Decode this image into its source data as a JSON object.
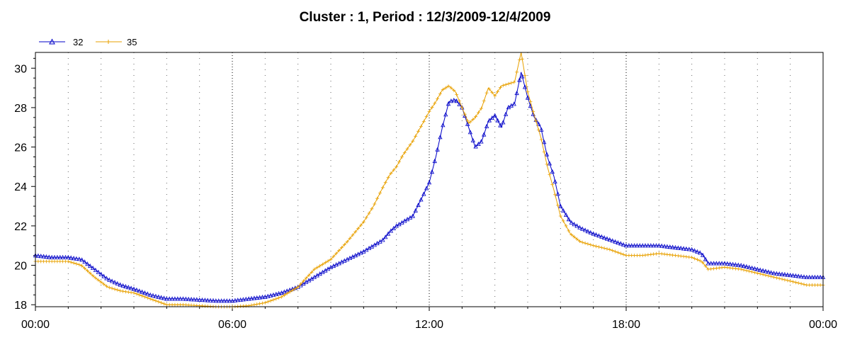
{
  "chart_data": {
    "type": "line",
    "title": "Cluster : 1, Period : 12/3/2009-12/4/2009",
    "xlabel": "",
    "ylabel": "",
    "x_ticks": [
      "00:00",
      "06:00",
      "12:00",
      "18:00",
      "00:00"
    ],
    "x_range_hours": [
      0,
      24
    ],
    "ylim": [
      17.9,
      30.8
    ],
    "y_ticks": [
      18,
      20,
      22,
      24,
      26,
      28,
      30
    ],
    "grid": "vertical dotted",
    "legend_position": "top-left",
    "x_hours": [
      0,
      0.5,
      1,
      1.4,
      1.8,
      2.2,
      2.6,
      3,
      3.5,
      4,
      4.5,
      5,
      5.5,
      6,
      6.5,
      7,
      7.5,
      8,
      8.5,
      9,
      9.5,
      10,
      10.3,
      10.6,
      10.8,
      11,
      11.2,
      11.5,
      11.8,
      12,
      12.2,
      12.4,
      12.6,
      12.8,
      13,
      13.2,
      13.4,
      13.6,
      13.8,
      14,
      14.2,
      14.4,
      14.6,
      14.8,
      15,
      15.2,
      15.4,
      15.6,
      15.8,
      16,
      16.3,
      16.6,
      17,
      17.5,
      18,
      18.5,
      19,
      19.5,
      20,
      20.3,
      20.5,
      21,
      21.5,
      22,
      22.5,
      23,
      23.5,
      24
    ],
    "series": [
      {
        "name": "32",
        "color": "#0000c8",
        "marker": "triangle",
        "values": [
          20.5,
          20.4,
          20.4,
          20.3,
          19.8,
          19.3,
          19.0,
          18.8,
          18.5,
          18.3,
          18.3,
          18.25,
          18.2,
          18.2,
          18.3,
          18.4,
          18.6,
          18.9,
          19.4,
          19.9,
          20.3,
          20.7,
          21.0,
          21.3,
          21.7,
          22.0,
          22.2,
          22.5,
          23.5,
          24.2,
          25.5,
          27.0,
          28.3,
          28.4,
          28.0,
          27.0,
          26.0,
          26.3,
          27.3,
          27.6,
          27.0,
          28.0,
          28.2,
          29.8,
          28.5,
          27.5,
          27.0,
          25.5,
          24.5,
          23.0,
          22.2,
          21.9,
          21.6,
          21.3,
          21.0,
          21.0,
          21.0,
          20.9,
          20.8,
          20.6,
          20.1,
          20.1,
          20.0,
          19.8,
          19.6,
          19.5,
          19.4,
          19.4
        ]
      },
      {
        "name": "35",
        "color": "#e8a000",
        "marker": "plus",
        "values": [
          20.2,
          20.2,
          20.2,
          20.0,
          19.4,
          18.9,
          18.7,
          18.6,
          18.3,
          18.0,
          18.0,
          17.95,
          17.9,
          17.9,
          17.95,
          18.1,
          18.4,
          18.9,
          19.8,
          20.3,
          21.2,
          22.2,
          23.0,
          24.0,
          24.6,
          25.0,
          25.6,
          26.3,
          27.2,
          27.8,
          28.3,
          28.9,
          29.1,
          28.8,
          28.0,
          27.2,
          27.5,
          28.0,
          29.0,
          28.6,
          29.1,
          29.2,
          29.3,
          30.8,
          28.8,
          27.6,
          26.5,
          25.0,
          23.8,
          22.5,
          21.6,
          21.2,
          21.0,
          20.8,
          20.5,
          20.5,
          20.6,
          20.5,
          20.4,
          20.2,
          19.8,
          19.9,
          19.8,
          19.6,
          19.4,
          19.2,
          19.0,
          19.0
        ]
      }
    ]
  }
}
